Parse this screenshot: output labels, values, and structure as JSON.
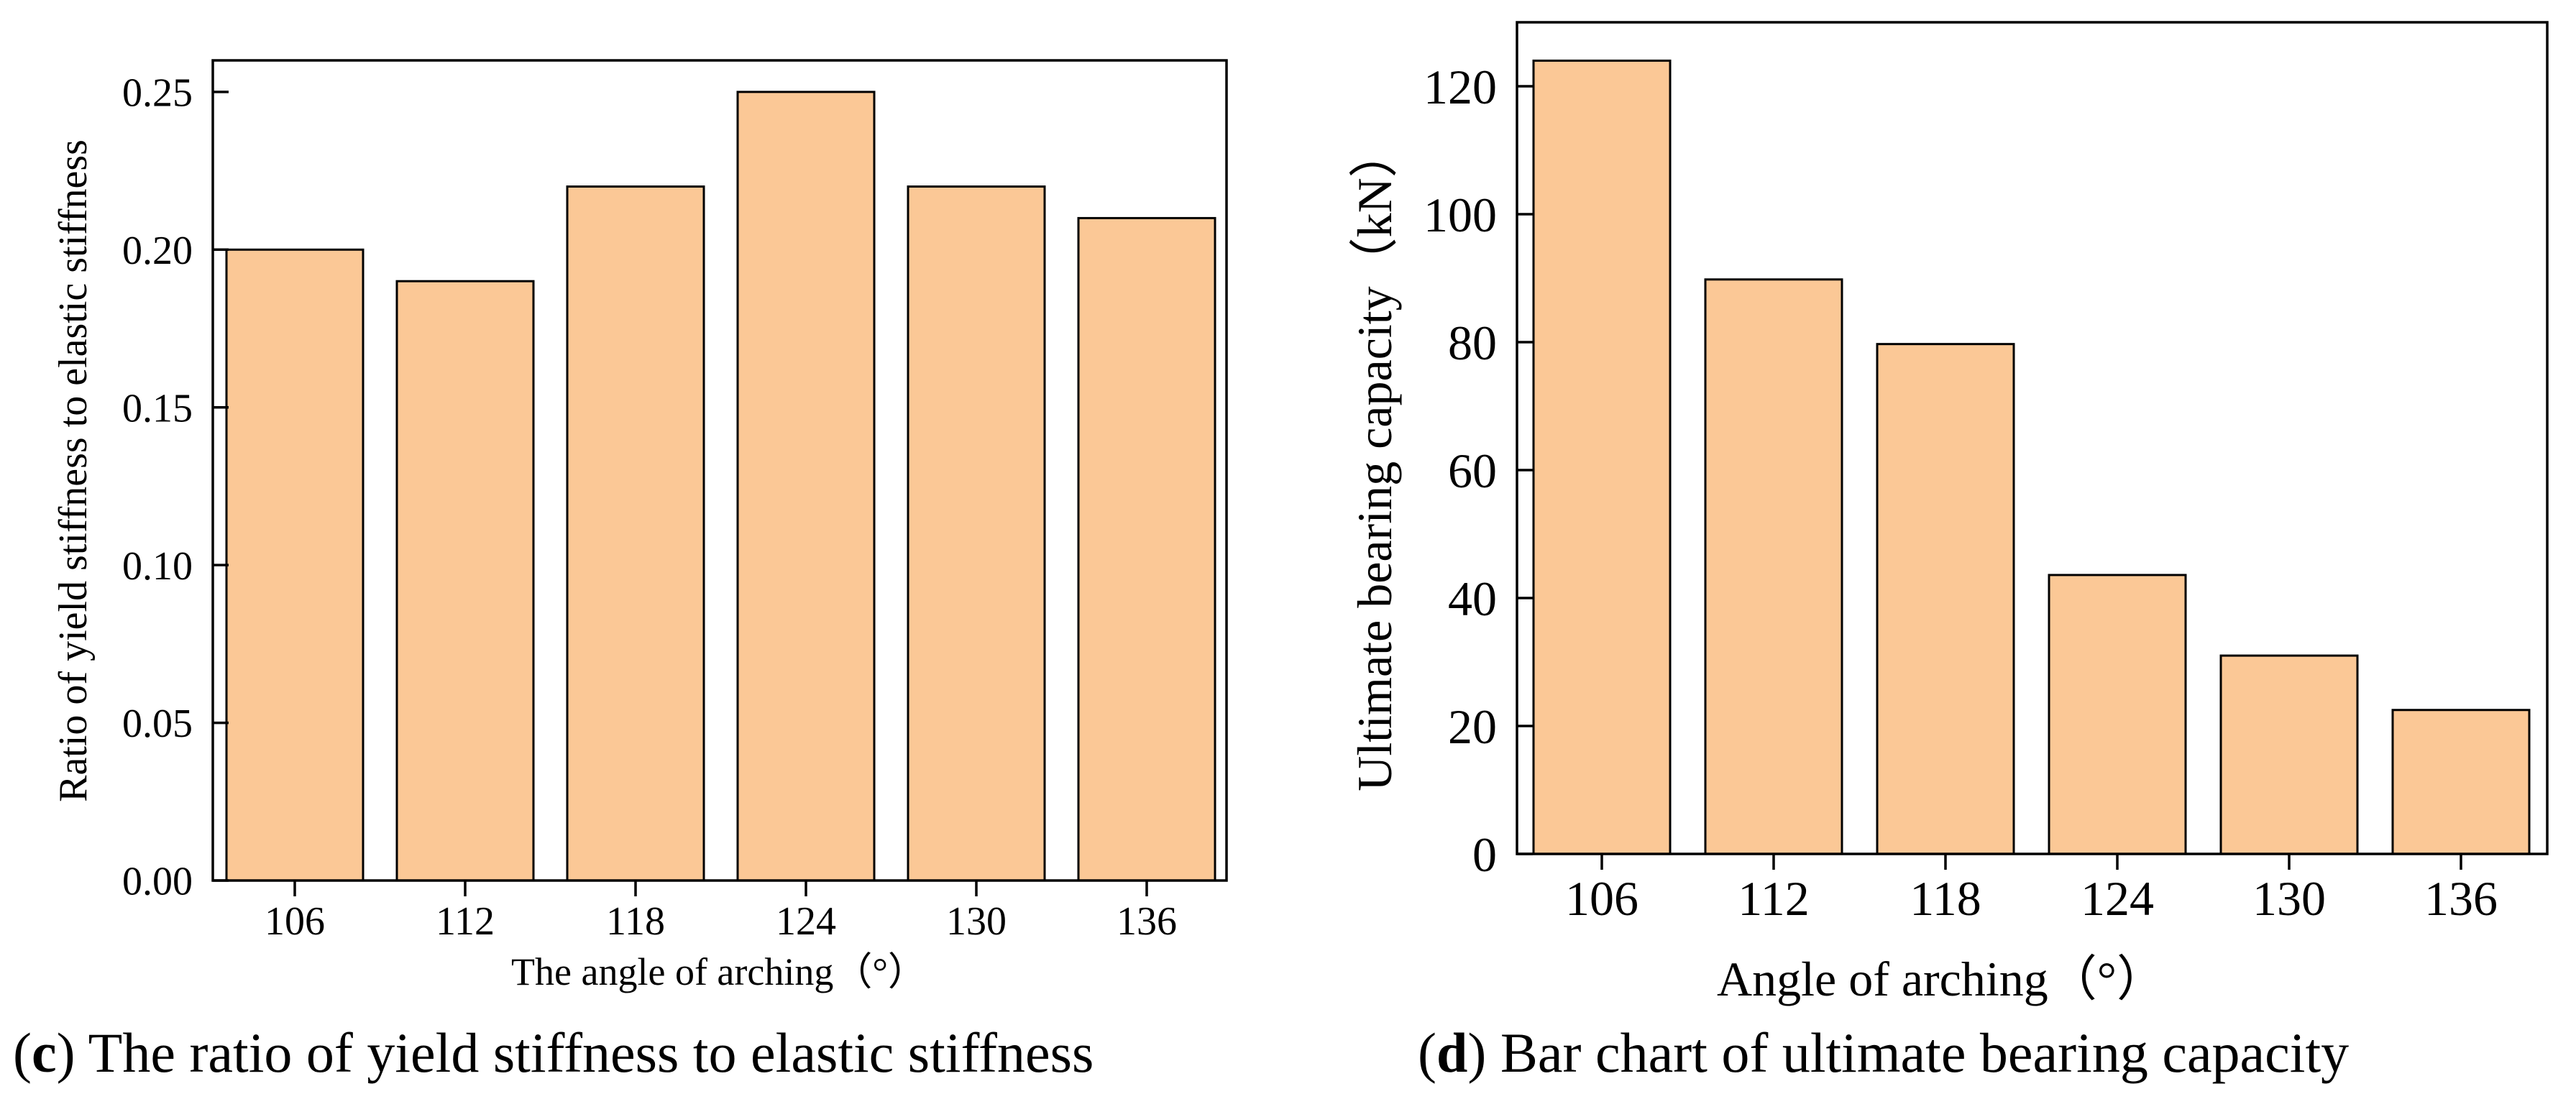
{
  "colors": {
    "bar_fill": "#FBC896",
    "bar_stroke": "#000000",
    "axis": "#000000"
  },
  "chart_data": [
    {
      "type": "bar",
      "panel_letter": "c",
      "caption_rest": " The ratio of yield stiffness to elastic stiffness",
      "title": "",
      "xlabel": "The angle of arching（°）",
      "ylabel": "Ratio of yield stiffness to elastic stiffness",
      "categories": [
        "106",
        "112",
        "118",
        "124",
        "130",
        "136"
      ],
      "values": [
        0.2,
        0.19,
        0.22,
        0.25,
        0.22,
        0.21
      ],
      "ylim": [
        0,
        0.26
      ],
      "yticks": [
        0.0,
        0.05,
        0.1,
        0.15,
        0.2,
        0.25
      ],
      "ytick_labels": [
        "0.00",
        "0.05",
        "0.10",
        "0.15",
        "0.20",
        "0.25"
      ],
      "grid": false
    },
    {
      "type": "bar",
      "panel_letter": "d",
      "caption_rest": " Bar chart of ultimate bearing capacity",
      "title": "",
      "xlabel": "Angle of arching（°）",
      "ylabel": "Ultimate bearing capacity（kN）",
      "categories": [
        "106",
        "112",
        "118",
        "124",
        "130",
        "136"
      ],
      "values": [
        124,
        89.8,
        79.7,
        43.6,
        31,
        22.5
      ],
      "ylim": [
        0,
        130
      ],
      "yticks": [
        0,
        20,
        40,
        60,
        80,
        100,
        120
      ],
      "ytick_labels": [
        "0",
        "20",
        "40",
        "60",
        "80",
        "100",
        "120"
      ],
      "grid": false
    }
  ]
}
